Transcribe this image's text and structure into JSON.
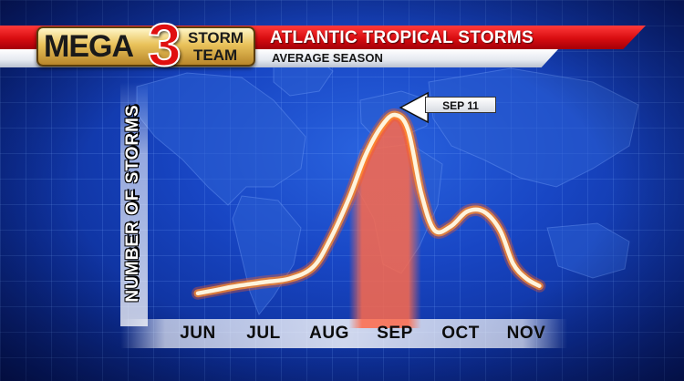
{
  "header": {
    "title": "ATLANTIC TROPICAL STORMS",
    "subtitle": "AVERAGE SEASON"
  },
  "logo": {
    "mega": "MEGA",
    "number": "3",
    "storm": "STORM",
    "team": "TEAM"
  },
  "colors": {
    "banner_red": "#d80c10",
    "background_blue": "#1846c4",
    "curve_core": "#fff4dc",
    "curve_glow": "#ff7a2a",
    "peak_band": "#ff6a4a"
  },
  "chart_data": {
    "type": "area",
    "title": "ATLANTIC TROPICAL STORMS",
    "subtitle": "AVERAGE SEASON",
    "xlabel": "",
    "ylabel": "NUMBER OF STORMS",
    "categories": [
      "JUN",
      "JUL",
      "AUG",
      "SEP",
      "OCT",
      "NOV"
    ],
    "x": [
      0,
      0.3,
      0.6,
      1,
      1.4,
      1.75,
      2,
      2.3,
      2.55,
      2.8,
      3,
      3.2,
      3.4,
      3.6,
      3.85,
      4.1,
      4.35,
      4.6,
      4.8,
      5,
      5.2
    ],
    "values": [
      4,
      6,
      8,
      10,
      12,
      18,
      32,
      55,
      78,
      94,
      100,
      92,
      58,
      38,
      40,
      48,
      48,
      38,
      20,
      12,
      8
    ],
    "ylim": [
      0,
      105
    ],
    "grid": false,
    "legend": "none",
    "peak_band": {
      "from": 2.3,
      "to": 3.4
    },
    "annotations": [
      {
        "text": "SEP 11",
        "x": 3.03,
        "y": 100
      }
    ]
  }
}
